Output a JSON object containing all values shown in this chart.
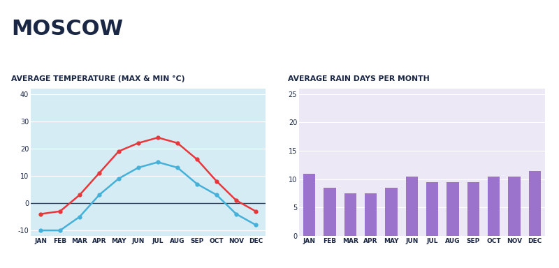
{
  "title": "MOSCOW",
  "months": [
    "JAN",
    "FEB",
    "MAR",
    "APR",
    "MAY",
    "JUN",
    "JUL",
    "AUG",
    "SEP",
    "OCT",
    "NOV",
    "DEC"
  ],
  "temp_max": [
    -4,
    -3,
    3,
    11,
    19,
    22,
    24,
    22,
    16,
    8,
    1,
    -3
  ],
  "temp_min": [
    -10,
    -10,
    -5,
    3,
    9,
    13,
    15,
    13,
    7,
    3,
    -4,
    -8
  ],
  "rain_days": [
    11,
    8.5,
    7.5,
    7.5,
    8.5,
    10.5,
    9.5,
    9.5,
    9.5,
    10.5,
    10.5,
    11.5
  ],
  "temp_subtitle": "AVERAGE TEMPERATURE (MAX & MIN °C)",
  "rain_subtitle": "AVERAGE RAIN DAYS PER MONTH",
  "temp_bg": "#d6ecf5",
  "rain_bg": "#ede8f5",
  "temp_max_color": "#e8373a",
  "temp_min_color": "#45b0d8",
  "bar_color": "#9b72cc",
  "title_color": "#1a2744",
  "label_color": "#1a2744",
  "gridline_color": "#ffffff",
  "zero_line_color": "#2a3a5a",
  "temp_ylim": [
    -12,
    42
  ],
  "temp_yticks": [
    -10,
    0,
    10,
    20,
    30,
    40
  ],
  "rain_ylim": [
    0,
    26
  ],
  "rain_yticks": [
    0,
    5,
    10,
    15,
    20,
    25
  ]
}
